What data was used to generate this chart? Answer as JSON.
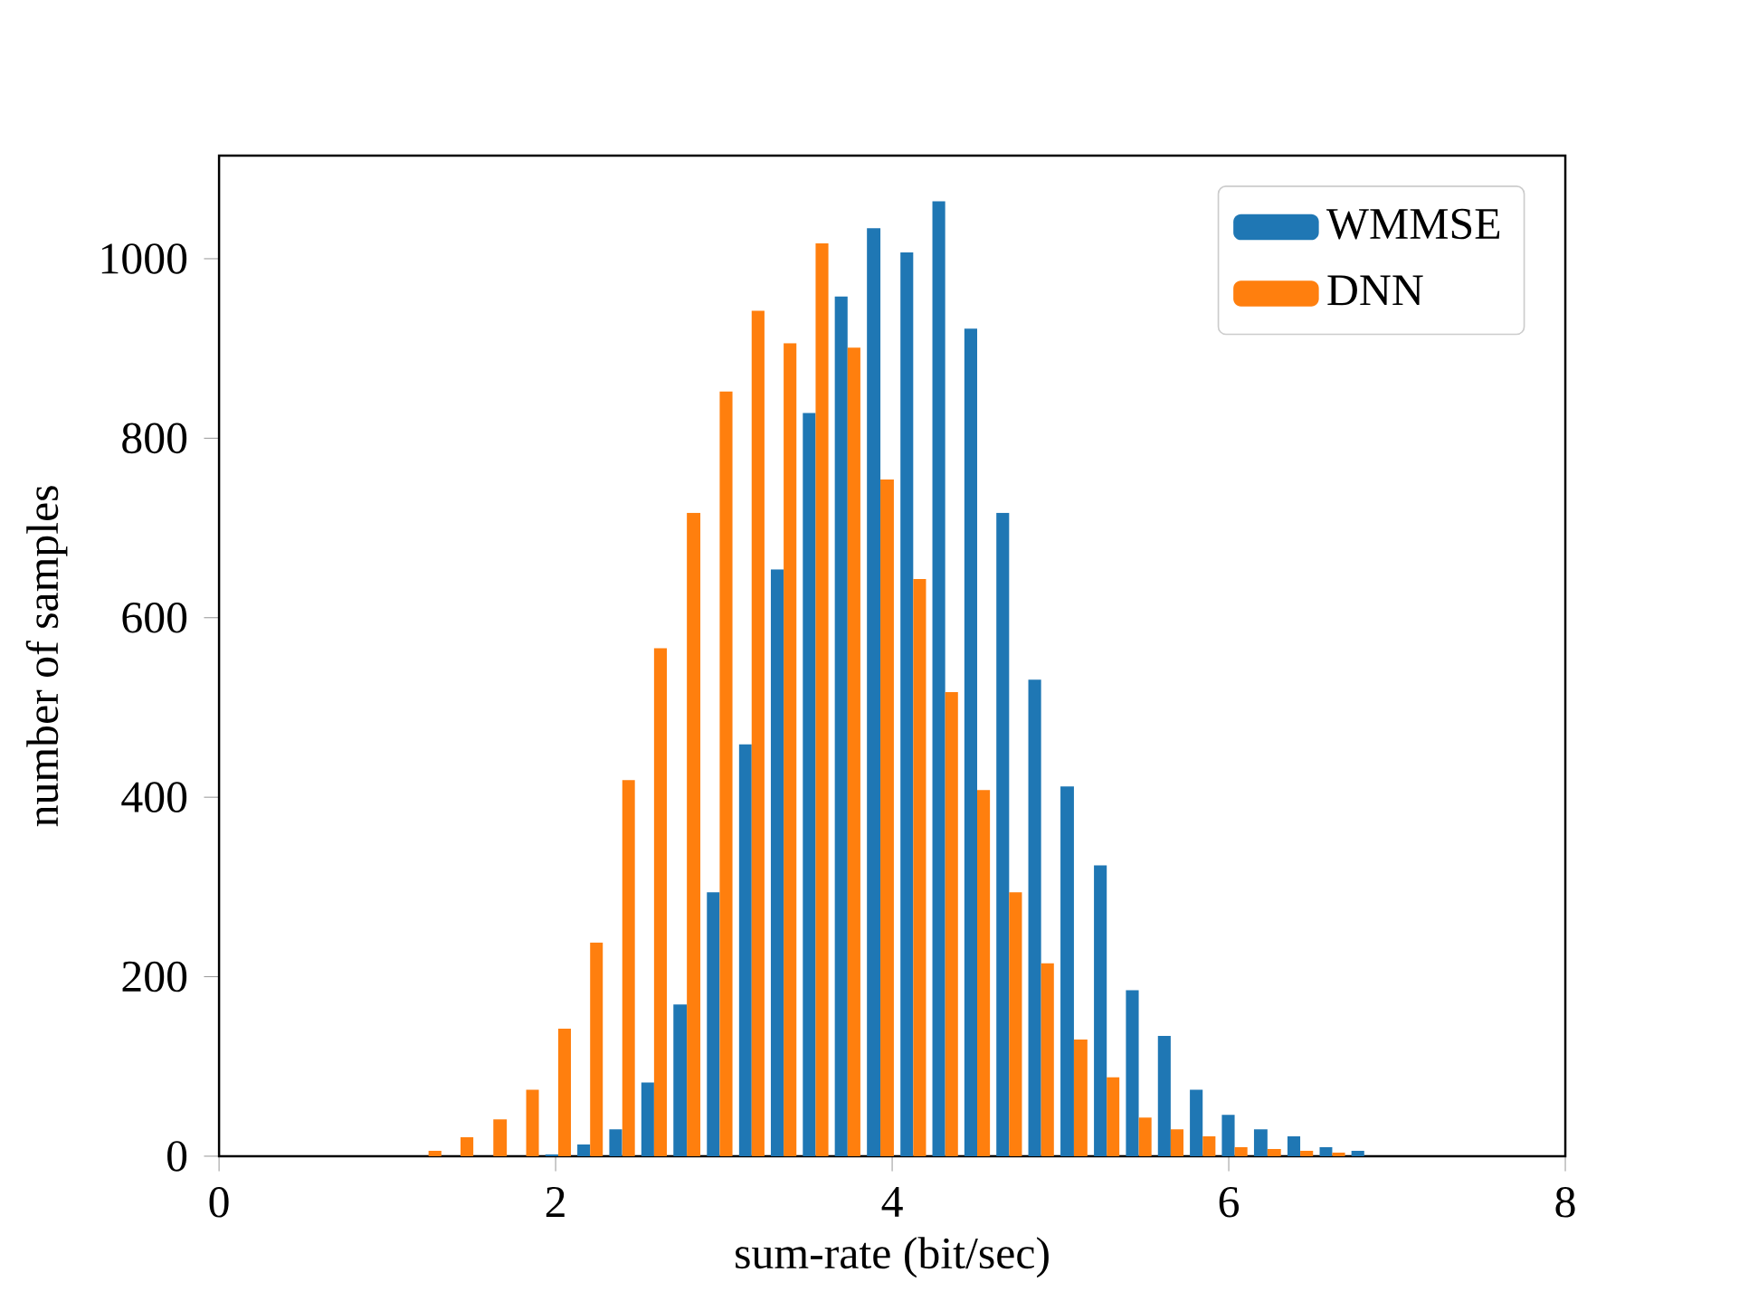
{
  "chart_data": {
    "type": "histogram",
    "xlabel": "sum-rate (bit/sec)",
    "ylabel": "number of samples",
    "bins": [
      1.15,
      1.34,
      1.53,
      1.73,
      1.92,
      2.11,
      2.3,
      2.49,
      2.68,
      2.88,
      3.07,
      3.26,
      3.45,
      3.64,
      3.83,
      4.03,
      4.22,
      4.41,
      4.6,
      4.79,
      4.98,
      5.18,
      5.37,
      5.56,
      5.75,
      5.94,
      6.13,
      6.33,
      6.52,
      6.71,
      6.9
    ],
    "series": [
      {
        "name": "WMMSE",
        "color": "#1f77b4",
        "values": [
          0,
          0,
          0,
          0,
          2,
          13,
          30,
          82,
          169,
          294,
          459,
          654,
          828,
          958,
          1034,
          1007,
          1064,
          922,
          717,
          531,
          412,
          324,
          185,
          134,
          74,
          46,
          30,
          22,
          10,
          6
        ]
      },
      {
        "name": "DNN",
        "color": "#ff7f0e",
        "values": [
          6,
          21,
          41,
          74,
          142,
          238,
          419,
          566,
          717,
          852,
          942,
          906,
          1017,
          901,
          754,
          643,
          517,
          408,
          294,
          215,
          130,
          88,
          43,
          30,
          22,
          10,
          8,
          6,
          4,
          0
        ]
      }
    ],
    "xlim": [
      0,
      8
    ],
    "xticks": [
      0,
      2,
      4,
      6,
      8
    ],
    "ylim": [
      0,
      1115
    ],
    "yticks": [
      0,
      200,
      400,
      600,
      800,
      1000
    ],
    "legend": "top right"
  }
}
